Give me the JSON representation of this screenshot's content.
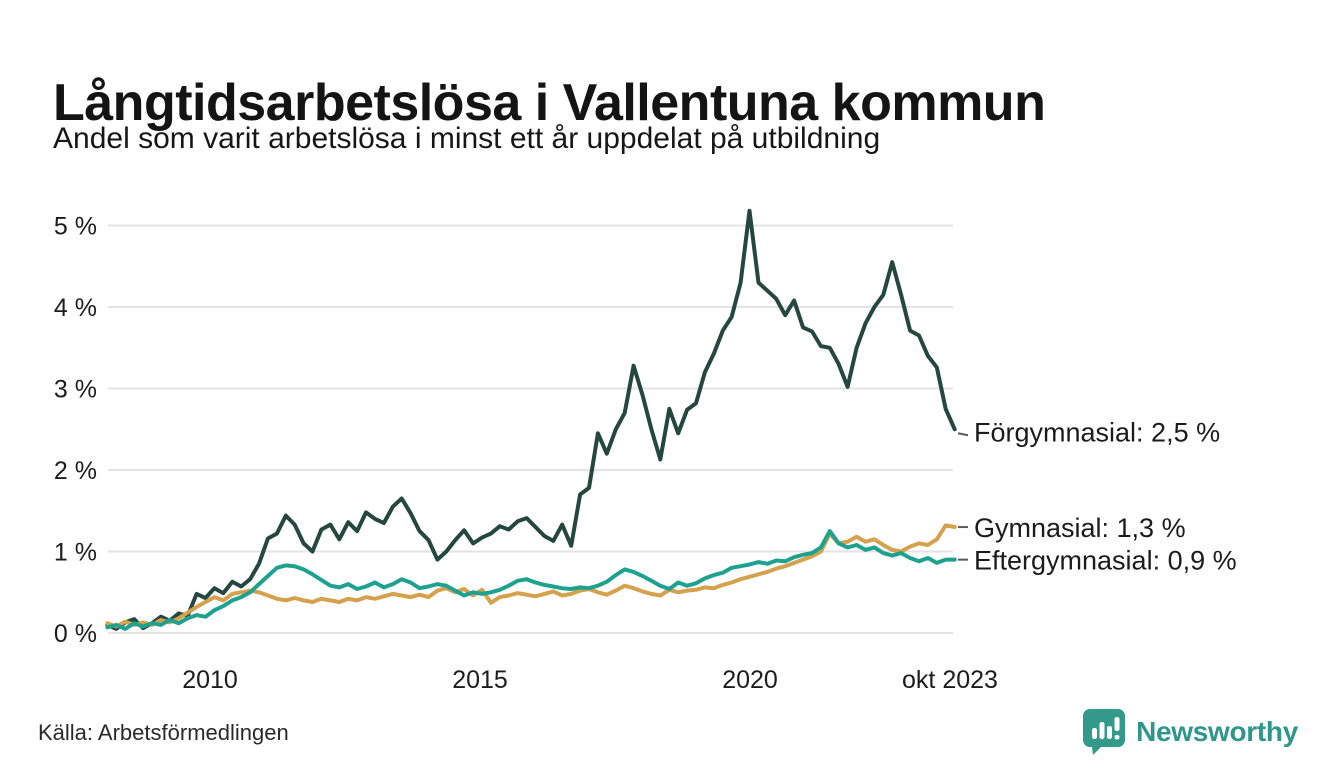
{
  "header": {
    "title": "Långtidsarbetslösa i Vallentuna kommun",
    "subtitle": "Andel som varit arbetslösa i minst ett år uppdelat på utbildning"
  },
  "footer": {
    "source": "Källa: Arbetsförmedlingen",
    "brand_name": "Newsworthy",
    "brand_color": "#2f978a",
    "brand_icon": "bar-chart-speech-bubble-icon"
  },
  "chart_data": {
    "type": "line",
    "title": "Långtidsarbetslösa i Vallentuna kommun",
    "subtitle": "Andel som varit arbetslösa i minst ett år uppdelat på utbildning",
    "unit": "%",
    "grid": true,
    "legend_position": "right-end-of-line",
    "x_start": 2008.1,
    "x_end": 2023.79,
    "ylim": [
      0,
      5.4
    ],
    "x_ticks": [
      {
        "value": 2010,
        "label": "2010"
      },
      {
        "value": 2015,
        "label": "2015"
      },
      {
        "value": 2020,
        "label": "2020"
      },
      {
        "value": 2023.79,
        "label": "okt 2023"
      }
    ],
    "y_ticks": [
      {
        "value": 0,
        "label": "0 %"
      },
      {
        "value": 1,
        "label": "1 %"
      },
      {
        "value": 2,
        "label": "2 %"
      },
      {
        "value": 3,
        "label": "3 %"
      },
      {
        "value": 4,
        "label": "4 %"
      },
      {
        "value": 5,
        "label": "5 %"
      }
    ],
    "series": [
      {
        "name": "Förgymnasial",
        "end_label": "Förgymnasial: 2,5 %",
        "final_value": 2.5,
        "color": "#25473f",
        "values": [
          0.1,
          0.05,
          0.13,
          0.17,
          0.06,
          0.12,
          0.2,
          0.15,
          0.24,
          0.21,
          0.48,
          0.43,
          0.55,
          0.49,
          0.63,
          0.57,
          0.66,
          0.85,
          1.16,
          1.22,
          1.44,
          1.33,
          1.1,
          1.0,
          1.27,
          1.33,
          1.15,
          1.36,
          1.25,
          1.48,
          1.4,
          1.35,
          1.55,
          1.65,
          1.47,
          1.25,
          1.14,
          0.9,
          1.0,
          1.14,
          1.26,
          1.1,
          1.17,
          1.22,
          1.31,
          1.27,
          1.37,
          1.41,
          1.3,
          1.19,
          1.13,
          1.33,
          1.07,
          1.7,
          1.78,
          2.45,
          2.2,
          2.5,
          2.7,
          3.28,
          2.92,
          2.5,
          2.13,
          2.75,
          2.45,
          2.74,
          2.82,
          3.2,
          3.43,
          3.71,
          3.88,
          4.3,
          5.18,
          4.3,
          4.2,
          4.1,
          3.9,
          4.08,
          3.75,
          3.7,
          3.52,
          3.5,
          3.3,
          3.02,
          3.5,
          3.8,
          4.0,
          4.15,
          4.55,
          4.15,
          3.71,
          3.65,
          3.4,
          3.26,
          2.75,
          2.5
        ]
      },
      {
        "name": "Gymnasial",
        "end_label": "Gymnasial: 1,3 %",
        "final_value": 1.3,
        "color": "#d4a14c",
        "values": [
          0.12,
          0.08,
          0.14,
          0.1,
          0.13,
          0.1,
          0.16,
          0.13,
          0.18,
          0.25,
          0.32,
          0.38,
          0.44,
          0.4,
          0.48,
          0.5,
          0.52,
          0.5,
          0.46,
          0.42,
          0.4,
          0.43,
          0.4,
          0.38,
          0.42,
          0.4,
          0.38,
          0.42,
          0.4,
          0.44,
          0.42,
          0.45,
          0.48,
          0.46,
          0.44,
          0.47,
          0.44,
          0.52,
          0.55,
          0.5,
          0.54,
          0.46,
          0.53,
          0.37,
          0.44,
          0.46,
          0.49,
          0.47,
          0.45,
          0.48,
          0.51,
          0.46,
          0.48,
          0.52,
          0.54,
          0.5,
          0.47,
          0.52,
          0.58,
          0.55,
          0.51,
          0.48,
          0.46,
          0.53,
          0.5,
          0.52,
          0.53,
          0.56,
          0.55,
          0.59,
          0.62,
          0.66,
          0.69,
          0.72,
          0.75,
          0.79,
          0.82,
          0.86,
          0.9,
          0.94,
          1.0,
          1.22,
          1.1,
          1.12,
          1.18,
          1.12,
          1.15,
          1.08,
          1.02,
          1.0,
          1.06,
          1.1,
          1.08,
          1.15,
          1.32,
          1.3
        ]
      },
      {
        "name": "Eftergymnasial",
        "end_label": "Eftergymnasial: 0,9 %",
        "final_value": 0.9,
        "color": "#1ea28f",
        "values": [
          0.07,
          0.1,
          0.05,
          0.12,
          0.08,
          0.12,
          0.1,
          0.16,
          0.12,
          0.18,
          0.22,
          0.2,
          0.28,
          0.33,
          0.4,
          0.44,
          0.5,
          0.6,
          0.7,
          0.8,
          0.83,
          0.82,
          0.78,
          0.72,
          0.65,
          0.58,
          0.56,
          0.6,
          0.54,
          0.57,
          0.62,
          0.56,
          0.6,
          0.66,
          0.62,
          0.55,
          0.57,
          0.6,
          0.58,
          0.52,
          0.46,
          0.5,
          0.48,
          0.5,
          0.53,
          0.58,
          0.64,
          0.66,
          0.62,
          0.59,
          0.57,
          0.55,
          0.54,
          0.56,
          0.55,
          0.58,
          0.63,
          0.71,
          0.78,
          0.75,
          0.7,
          0.64,
          0.58,
          0.54,
          0.62,
          0.58,
          0.61,
          0.67,
          0.71,
          0.74,
          0.8,
          0.82,
          0.84,
          0.87,
          0.85,
          0.89,
          0.88,
          0.93,
          0.96,
          0.98,
          1.05,
          1.25,
          1.1,
          1.05,
          1.08,
          1.02,
          1.05,
          0.98,
          0.95,
          0.98,
          0.92,
          0.88,
          0.92,
          0.86,
          0.9,
          0.9
        ]
      }
    ]
  }
}
